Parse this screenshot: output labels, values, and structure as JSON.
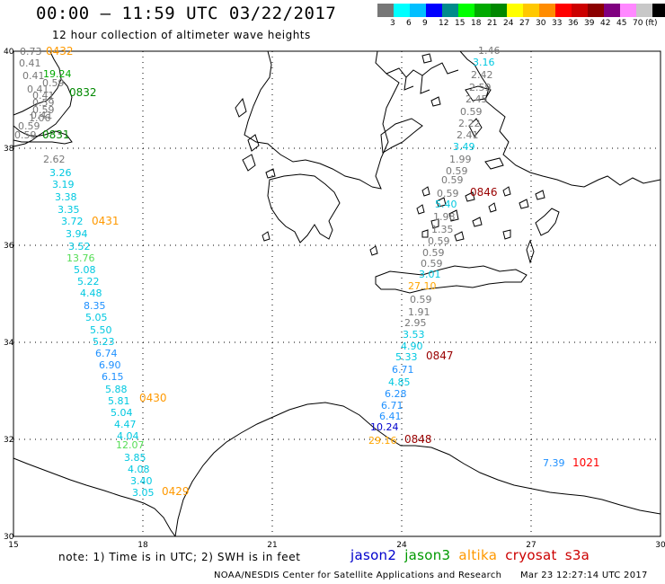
{
  "header": {
    "title": "00:00 – 11:59 UTC 03/22/2017",
    "subtitle": "12 hour collection of altimeter wave heights"
  },
  "legend": {
    "colors": [
      "#777777",
      "#00ffff",
      "#00bfff",
      "#0000ff",
      "#008b8b",
      "#00ff00",
      "#00aa00",
      "#008800",
      "#ffff00",
      "#ffc800",
      "#ff8c00",
      "#ff0000",
      "#cc0000",
      "#8b0000",
      "#800080",
      "#ff88ff",
      "#c8c8c8",
      "#000000"
    ],
    "labels": [
      "3",
      "6",
      "9",
      "12",
      "15",
      "18",
      "21",
      "24",
      "27",
      "30",
      "33",
      "36",
      "39",
      "42",
      "45",
      "70"
    ],
    "unit": "(ft)"
  },
  "axes": {
    "lat_labels": [
      "40",
      "38",
      "36",
      "34",
      "32",
      "30"
    ],
    "lon_labels": [
      "15",
      "18",
      "21",
      "24",
      "27",
      "30"
    ]
  },
  "passes": [
    {
      "label": "0432",
      "color": "#ff9900"
    },
    {
      "label": "0832",
      "color": "#008800"
    },
    {
      "label": "0831",
      "color": "#008800"
    },
    {
      "label": "0431",
      "color": "#ff9900"
    },
    {
      "label": "0846",
      "color": "#990000"
    },
    {
      "label": "0847",
      "color": "#990000"
    },
    {
      "label": "0430",
      "color": "#ff9900"
    },
    {
      "label": "0848",
      "color": "#990000"
    },
    {
      "label": "0429",
      "color": "#ff9900"
    },
    {
      "label": "1021",
      "color": "#ff0000"
    }
  ],
  "wave_heights_west": [
    {
      "v": "0.73",
      "c": "#777777"
    },
    {
      "v": "0.41",
      "c": "#777777"
    },
    {
      "v": "0.41",
      "c": "#777777"
    },
    {
      "v": "19.24",
      "c": "#00aa00"
    },
    {
      "v": "0.59",
      "c": "#777777"
    },
    {
      "v": "0.41",
      "c": "#777777"
    },
    {
      "v": "0.41",
      "c": "#777777"
    },
    {
      "v": "0.59",
      "c": "#777777"
    },
    {
      "v": "0.59",
      "c": "#777777"
    },
    {
      "v": "0.41",
      "c": "#777777"
    },
    {
      "v": "1.06",
      "c": "#777777"
    },
    {
      "v": "0.59",
      "c": "#777777"
    },
    {
      "v": "0.59",
      "c": "#777777"
    },
    {
      "v": "2.62",
      "c": "#777777"
    },
    {
      "v": "3.26",
      "c": "#00c8e0"
    },
    {
      "v": "3.19",
      "c": "#00c8e0"
    },
    {
      "v": "3.38",
      "c": "#00c8e0"
    },
    {
      "v": "3.35",
      "c": "#00c8e0"
    },
    {
      "v": "3.72",
      "c": "#00c8e0"
    },
    {
      "v": "3.94",
      "c": "#00c8e0"
    },
    {
      "v": "3.52",
      "c": "#00c8e0"
    },
    {
      "v": "13.76",
      "c": "#55dd55"
    },
    {
      "v": "5.08",
      "c": "#00c8e0"
    },
    {
      "v": "5.22",
      "c": "#00c8e0"
    },
    {
      "v": "4.48",
      "c": "#00c8e0"
    },
    {
      "v": "8.35",
      "c": "#1e90ff"
    },
    {
      "v": "5.05",
      "c": "#00c8e0"
    },
    {
      "v": "5.50",
      "c": "#00c8e0"
    },
    {
      "v": "5.23",
      "c": "#00c8e0"
    },
    {
      "v": "6.74",
      "c": "#1e90ff"
    },
    {
      "v": "6.90",
      "c": "#1e90ff"
    },
    {
      "v": "6.15",
      "c": "#1e90ff"
    },
    {
      "v": "5.88",
      "c": "#00c8e0"
    },
    {
      "v": "5.81",
      "c": "#00c8e0"
    },
    {
      "v": "5.04",
      "c": "#00c8e0"
    },
    {
      "v": "4.47",
      "c": "#00c8e0"
    },
    {
      "v": "4.04",
      "c": "#00c8e0"
    },
    {
      "v": "12.07",
      "c": "#55dd55"
    },
    {
      "v": "3.85",
      "c": "#00c8e0"
    },
    {
      "v": "4.08",
      "c": "#00c8e0"
    },
    {
      "v": "3.40",
      "c": "#00c8e0"
    },
    {
      "v": "3.05",
      "c": "#00c8e0"
    }
  ],
  "wave_heights_east": [
    {
      "v": "1.46",
      "c": "#777777"
    },
    {
      "v": "3.16",
      "c": "#00c8e0"
    },
    {
      "v": "2.42",
      "c": "#777777"
    },
    {
      "v": "2.59",
      "c": "#777777"
    },
    {
      "v": "2.45",
      "c": "#777777"
    },
    {
      "v": "0.59",
      "c": "#777777"
    },
    {
      "v": "2.22",
      "c": "#777777"
    },
    {
      "v": "2.41",
      "c": "#777777"
    },
    {
      "v": "3.49",
      "c": "#00c8e0"
    },
    {
      "v": "1.99",
      "c": "#777777"
    },
    {
      "v": "0.59",
      "c": "#777777"
    },
    {
      "v": "0.59",
      "c": "#777777"
    },
    {
      "v": "0.59",
      "c": "#777777"
    },
    {
      "v": "5.40",
      "c": "#00c8e0"
    },
    {
      "v": "1.98",
      "c": "#777777"
    },
    {
      "v": "1.35",
      "c": "#777777"
    },
    {
      "v": "0.59",
      "c": "#777777"
    },
    {
      "v": "0.59",
      "c": "#777777"
    },
    {
      "v": "0.59",
      "c": "#777777"
    },
    {
      "v": "3.01",
      "c": "#00c8e0"
    },
    {
      "v": "27.10",
      "c": "#ffa500"
    },
    {
      "v": "0.59",
      "c": "#777777"
    },
    {
      "v": "1.91",
      "c": "#777777"
    },
    {
      "v": "2.95",
      "c": "#777777"
    },
    {
      "v": "3.53",
      "c": "#00c8e0"
    },
    {
      "v": "4.90",
      "c": "#00c8e0"
    },
    {
      "v": "5.33",
      "c": "#00c8e0"
    },
    {
      "v": "6.71",
      "c": "#1e90ff"
    },
    {
      "v": "4.85",
      "c": "#00c8e0"
    },
    {
      "v": "6.28",
      "c": "#1e90ff"
    },
    {
      "v": "6.71",
      "c": "#1e90ff"
    },
    {
      "v": "6.41",
      "c": "#1e90ff"
    },
    {
      "v": "10.24",
      "c": "#0000cc"
    },
    {
      "v": "29.16",
      "c": "#ffa500"
    },
    {
      "v": "7.39",
      "c": "#1e90ff"
    }
  ],
  "footer": {
    "note": "note:  1) Time is in UTC;  2) SWH is in feet",
    "satellites": [
      {
        "name": "jason2",
        "color": "#0000cc"
      },
      {
        "name": "jason3",
        "color": "#009900"
      },
      {
        "name": "altika",
        "color": "#ff9900"
      },
      {
        "name": "cryosat",
        "color": "#cc0000"
      },
      {
        "name": "s3a",
        "color": "#cc0000"
      }
    ],
    "credit": "NOAA/NESDIS Center for Satellite Applications and Research",
    "timestamp": "Mar 23 12:27:14 UTC 2017"
  }
}
